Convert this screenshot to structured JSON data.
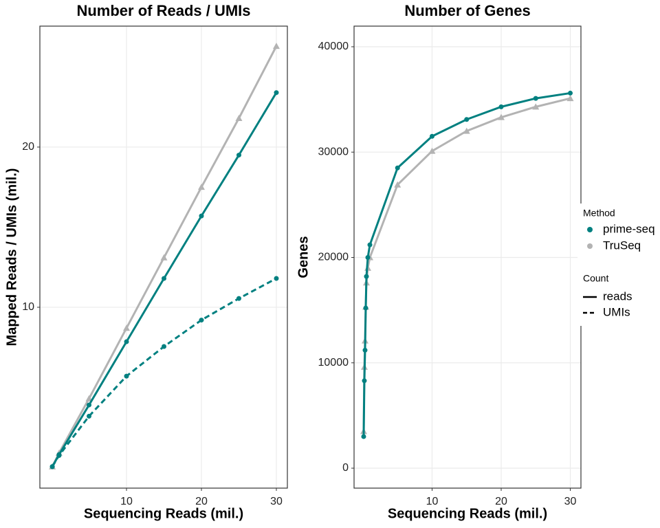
{
  "chart_data": [
    {
      "type": "scatter",
      "title": "Number of Reads / UMIs",
      "xlabel": "Sequencing Reads (mil.)",
      "ylabel": "Mapped Reads / UMIs (mil.)",
      "xlim": [
        -1.56,
        31.47
      ],
      "ylim": [
        -1.29,
        27.55
      ],
      "xticks": [
        10,
        20,
        30
      ],
      "yticks": [
        10,
        20
      ],
      "grid": true,
      "series": [
        {
          "method": 1,
          "count": 0,
          "color": "#b3b3b3",
          "shape": "triangle",
          "dashed": false,
          "x": [
            0.1,
            1,
            5,
            10,
            15,
            20,
            25,
            30
          ],
          "values": [
            0.05,
            0.9,
            4.3,
            8.7,
            13.1,
            17.5,
            21.8,
            26.3
          ]
        },
        {
          "method": 0,
          "count": 0,
          "color": "#008080",
          "shape": "circle",
          "dashed": false,
          "x": [
            0.1,
            1,
            5,
            10,
            15,
            20,
            25,
            30
          ],
          "values": [
            0.05,
            0.8,
            3.9,
            7.85,
            11.8,
            15.7,
            19.5,
            23.4
          ]
        },
        {
          "method": 0,
          "count": 1,
          "color": "#008080",
          "shape": "circle",
          "dashed": true,
          "x": [
            0.1,
            1,
            5,
            10,
            15,
            20,
            25,
            30
          ],
          "values": [
            0.05,
            0.75,
            3.2,
            5.7,
            7.55,
            9.2,
            10.55,
            11.8
          ]
        }
      ]
    },
    {
      "type": "scatter",
      "title": "Number of Genes",
      "xlabel": "Sequencing Reads (mil.)",
      "ylabel": "Genes",
      "xlim": [
        -1.29,
        31.54
      ],
      "ylim": [
        -1892,
        41958
      ],
      "xticks": [
        10,
        20,
        30
      ],
      "yticks": [
        0,
        10000,
        20000,
        30000,
        40000
      ],
      "grid": true,
      "series": [
        {
          "method": 1,
          "count": 0,
          "color": "#b3b3b3",
          "shape": "triangle",
          "dashed": false,
          "x": [
            0.1,
            0.2,
            0.3,
            0.4,
            0.5,
            0.7,
            1,
            5,
            10,
            15,
            20,
            25,
            30
          ],
          "values": [
            3500,
            9600,
            12100,
            15300,
            17600,
            19000,
            20000,
            26900,
            30100,
            32000,
            33300,
            34300,
            35100
          ]
        },
        {
          "method": 0,
          "count": 0,
          "color": "#008080",
          "shape": "circle",
          "dashed": false,
          "x": [
            0.1,
            0.2,
            0.3,
            0.4,
            0.5,
            0.7,
            1,
            5,
            10,
            15,
            20,
            25,
            30
          ],
          "values": [
            3000,
            8300,
            11200,
            15200,
            18200,
            20000,
            21200,
            28500,
            31500,
            33100,
            34300,
            35100,
            35600
          ]
        }
      ]
    }
  ],
  "legend": {
    "method": {
      "title": "Method",
      "entries": [
        {
          "label": "prime-seq",
          "color": "#008080"
        },
        {
          "label": "TruSeq",
          "color": "#b3b3b3"
        }
      ]
    },
    "count": {
      "title": "Count",
      "entries": [
        {
          "label": "reads",
          "dashed": false
        },
        {
          "label": "UMIs",
          "dashed": true
        }
      ]
    }
  }
}
